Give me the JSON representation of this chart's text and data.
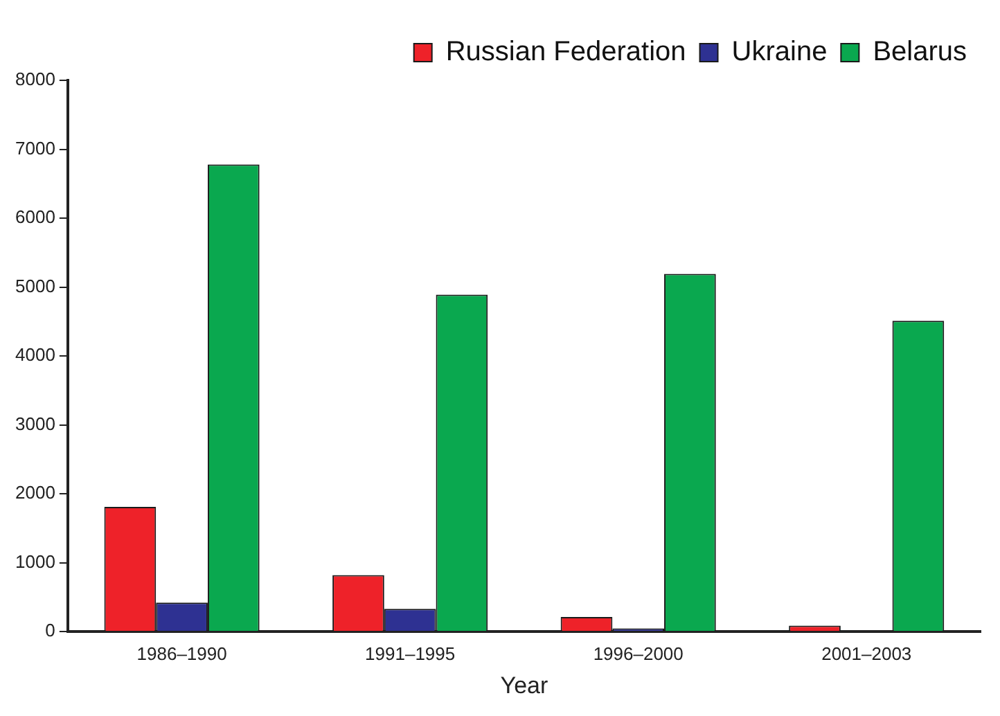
{
  "chart_data": {
    "type": "bar",
    "xlabel": "Year",
    "categories": [
      "1986–1990",
      "1991–1995",
      "1996–2000",
      "2001–2003"
    ],
    "series": [
      {
        "name": "Russian Federation",
        "color": "#ee2229",
        "values": [
          1810,
          820,
          210,
          85
        ]
      },
      {
        "name": "Ukraine",
        "color": "#2e3192",
        "values": [
          420,
          330,
          45,
          0
        ]
      },
      {
        "name": "Belarus",
        "color": "#0aa84f",
        "values": [
          6780,
          4890,
          5190,
          4510
        ]
      }
    ],
    "ylim": [
      0,
      8000
    ],
    "yticks": [
      0,
      1000,
      2000,
      3000,
      4000,
      5000,
      6000,
      7000,
      8000
    ],
    "grid": false,
    "legend": "top right"
  }
}
